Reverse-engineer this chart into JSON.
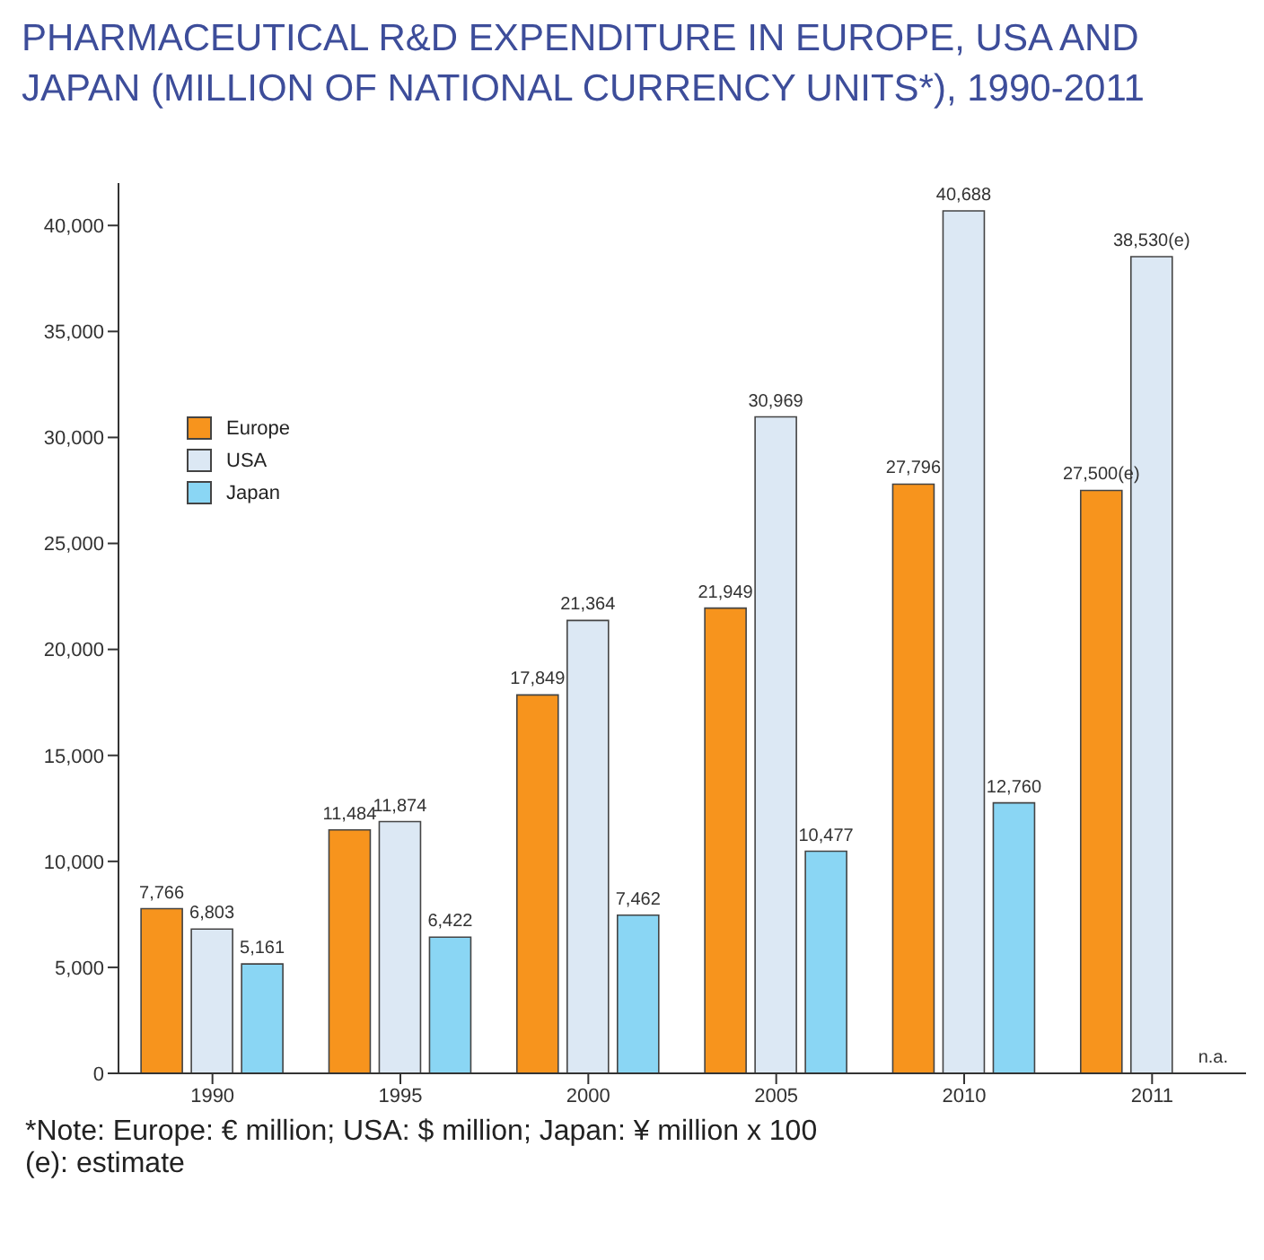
{
  "chart_data": {
    "type": "bar",
    "title": "PHARMACEUTICAL R&D EXPENDITURE IN EUROPE, USA AND JAPAN (MILLION OF NATIONAL CURRENCY UNITS*), 1990-2011",
    "categories": [
      "1990",
      "1995",
      "2000",
      "2005",
      "2010",
      "2011"
    ],
    "series": [
      {
        "name": "Europe",
        "color": "#f7941d",
        "values": [
          7766,
          11484,
          17849,
          21949,
          27796,
          27500
        ],
        "value_labels": [
          "7,766",
          "11,484",
          "17,849",
          "21,949",
          "27,796",
          "27,500(e)"
        ]
      },
      {
        "name": "USA",
        "color": "#dce8f4",
        "values": [
          6803,
          11874,
          21364,
          30969,
          40688,
          38530
        ],
        "value_labels": [
          "6,803",
          "11,874",
          "21,364",
          "30,969",
          "40,688",
          "38,530(e)"
        ]
      },
      {
        "name": "Japan",
        "color": "#8ad6f4",
        "values": [
          5161,
          6422,
          7462,
          10477,
          12760,
          null
        ],
        "value_labels": [
          "5,161",
          "6,422",
          "7,462",
          "10,477",
          "12,760",
          "n.a."
        ]
      }
    ],
    "ylim": [
      0,
      42000
    ],
    "yticks": [
      {
        "value": 0,
        "label": "0"
      },
      {
        "value": 5000,
        "label": "5,000"
      },
      {
        "value": 10000,
        "label": "10,000"
      },
      {
        "value": 15000,
        "label": "15,000"
      },
      {
        "value": 20000,
        "label": "20,000"
      },
      {
        "value": 25000,
        "label": "25,000"
      },
      {
        "value": 30000,
        "label": "30,000"
      },
      {
        "value": 35000,
        "label": "35,000"
      },
      {
        "value": 40000,
        "label": "40,000"
      }
    ],
    "grid": false,
    "legend": "top left",
    "annotations": [
      "*Note: Europe: € million; USA: $ million; Japan: ¥ million x 100",
      "(e): estimate"
    ]
  }
}
